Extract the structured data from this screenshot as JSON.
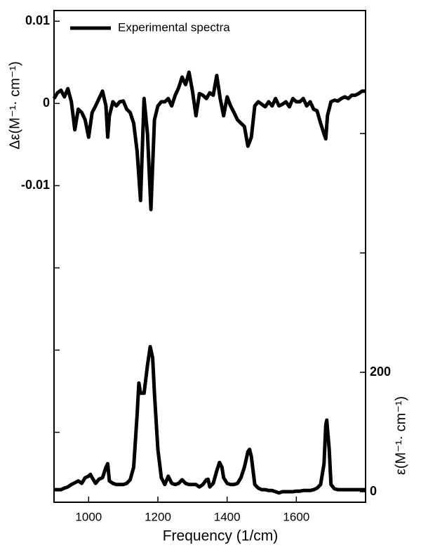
{
  "chart_data": {
    "type": "line",
    "x_label": "Frequency (1/cm)",
    "y_label": "Δε(M⁻¹· cm⁻¹)",
    "y2_label": "ε(M⁻¹· cm⁻¹)",
    "xlim": [
      900,
      1800
    ],
    "xticks": [
      1000,
      1200,
      1400,
      1600
    ],
    "ylim": [
      -0.0485,
      0.0113
    ],
    "yticks": [
      0.01,
      0,
      -0.01
    ],
    "y_minor_ticks": [
      -0.02,
      -0.03,
      -0.04
    ],
    "y2lim": [
      -17.6,
      806
    ],
    "y2ticks": [
      0,
      200
    ],
    "y2_minor_ticks": [
      400,
      600
    ],
    "legend": "upper left",
    "series": [
      {
        "name": "Experimental spectra",
        "color": "#000000",
        "x": [
          900,
          910,
          920,
          930,
          940,
          950,
          960,
          970,
          980,
          990,
          1000,
          1010,
          1020,
          1030,
          1040,
          1050,
          1055,
          1060,
          1070,
          1080,
          1090,
          1100,
          1110,
          1120,
          1130,
          1140,
          1150,
          1160,
          1170,
          1180,
          1190,
          1200,
          1210,
          1220,
          1230,
          1240,
          1250,
          1260,
          1270,
          1280,
          1290,
          1300,
          1310,
          1320,
          1330,
          1340,
          1350,
          1360,
          1370,
          1380,
          1390,
          1400,
          1410,
          1420,
          1430,
          1440,
          1450,
          1460,
          1470,
          1480,
          1490,
          1500,
          1510,
          1520,
          1530,
          1540,
          1550,
          1560,
          1570,
          1580,
          1590,
          1600,
          1610,
          1620,
          1630,
          1640,
          1650,
          1660,
          1670,
          1680,
          1685,
          1690,
          1700,
          1710,
          1720,
          1730,
          1740,
          1750,
          1760,
          1770,
          1780,
          1790,
          1800
        ],
        "values": [
          0.0006,
          0.0013,
          0.0016,
          0.0008,
          0.0018,
          0.0002,
          -0.0032,
          -0.0007,
          -0.0011,
          -0.002,
          -0.0041,
          -0.0011,
          -0.0003,
          0.0006,
          0.0015,
          -0.0003,
          -0.0041,
          -0.0015,
          0.0002,
          -0.0003,
          0.0002,
          0.0003,
          -0.0007,
          -0.0011,
          -0.0024,
          -0.0058,
          -0.0118,
          0.0006,
          -0.0037,
          -0.0129,
          -0.002,
          -0.0003,
          0.0002,
          0.0002,
          0.0006,
          -0.0003,
          0.001,
          0.0019,
          0.0032,
          0.0023,
          0.0038,
          0.0015,
          -0.0015,
          0.0012,
          0.001,
          0.0006,
          0.0013,
          0.001,
          0.0034,
          0.0006,
          -0.0015,
          0.0008,
          -0.0003,
          -0.0011,
          -0.002,
          -0.0024,
          -0.0028,
          -0.0052,
          -0.0041,
          -0.0003,
          0.0002,
          -0.0001,
          -0.0004,
          0.0002,
          -0.0003,
          0.0006,
          -0.0003,
          -0.0001,
          0.0002,
          -0.0004,
          0.0006,
          0.0002,
          0.0002,
          0.0006,
          -0.0003,
          0.0002,
          -0.0007,
          -0.0009,
          -0.0024,
          -0.0037,
          -0.0043,
          -0.0015,
          0.0002,
          0.0004,
          0.0003,
          0.0006,
          0.0008,
          0.0006,
          0.001,
          0.001,
          0.0012,
          0.0015,
          0.0015
        ]
      },
      {
        "color": "#000000",
        "axis": "y2",
        "x": [
          900,
          920,
          930,
          940,
          950,
          960,
          970,
          980,
          990,
          1000,
          1005,
          1010,
          1020,
          1030,
          1040,
          1050,
          1055,
          1060,
          1070,
          1080,
          1090,
          1100,
          1110,
          1120,
          1130,
          1140,
          1145,
          1150,
          1160,
          1170,
          1178,
          1185,
          1190,
          1200,
          1210,
          1220,
          1230,
          1240,
          1250,
          1260,
          1270,
          1280,
          1290,
          1300,
          1310,
          1320,
          1330,
          1340,
          1345,
          1350,
          1360,
          1370,
          1378,
          1385,
          1390,
          1400,
          1410,
          1420,
          1430,
          1440,
          1450,
          1460,
          1465,
          1470,
          1480,
          1490,
          1500,
          1510,
          1520,
          1530,
          1540,
          1550,
          1560,
          1570,
          1580,
          1590,
          1600,
          1610,
          1620,
          1630,
          1640,
          1650,
          1660,
          1670,
          1680,
          1685,
          1688,
          1695,
          1700,
          1710,
          1720,
          1740,
          1760,
          1780,
          1800
        ],
        "values": [
          3.5,
          3.5,
          6,
          8,
          12,
          15,
          18,
          14,
          23.5,
          26,
          29,
          23.5,
          14,
          21,
          23.5,
          41,
          47,
          18,
          14,
          12,
          12,
          12,
          14,
          20,
          41,
          129,
          182,
          165,
          165,
          212,
          243,
          224,
          165,
          71,
          23.5,
          12,
          26,
          14,
          12,
          14,
          20,
          14,
          12,
          12,
          12,
          8,
          12,
          20,
          21,
          8,
          14,
          35,
          49,
          41,
          23.5,
          14,
          12,
          12,
          14,
          23.5,
          41,
          67,
          71,
          59,
          12,
          6,
          3.5,
          3.5,
          2,
          2,
          0,
          -2,
          0,
          0,
          0,
          0,
          1,
          1,
          2,
          2,
          2,
          3.5,
          6,
          12,
          47,
          112,
          120,
          71,
          12,
          5,
          3.5,
          3.5,
          3.5,
          3.5,
          3.5
        ]
      }
    ]
  }
}
